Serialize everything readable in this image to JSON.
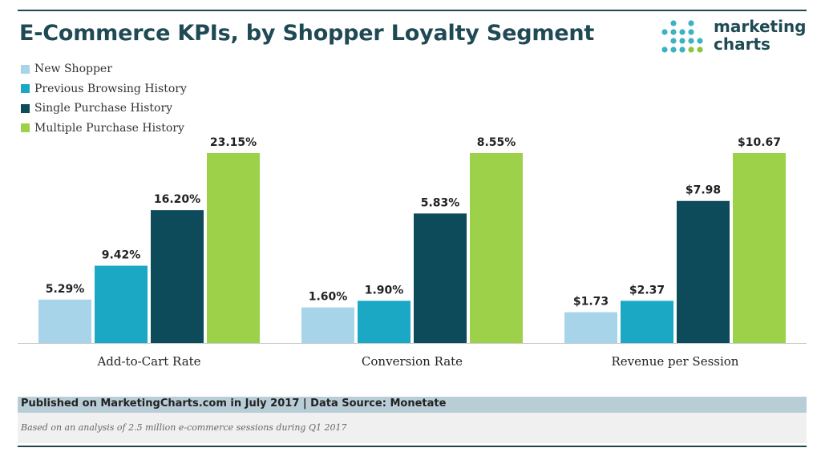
{
  "header": {
    "title": "E-Commerce KPIs, by Shopper Loyalty Segment",
    "logo_line1": "marketing",
    "logo_line2": "charts"
  },
  "footer": {
    "published": "Published on MarketingCharts.com in July 2017 | Data Source: Monetate",
    "note": "Based on an analysis of 2.5 million e-commerce sessions during Q1 2017"
  },
  "colors": {
    "title": "#1f4a55",
    "logo_dots": "#3bb3c3",
    "logo_dots_green": "#8cc63f"
  },
  "chart_data": {
    "type": "bar",
    "title": "E-Commerce KPIs, by Shopper Loyalty Segment",
    "categories": [
      "Add-to-Cart Rate",
      "Conversion Rate",
      "Revenue per Session"
    ],
    "legend_position": "top-left",
    "grid": false,
    "series": [
      {
        "name": "New Shopper",
        "color": "#a8d4ea",
        "values": [
          5.29,
          1.6,
          1.73
        ],
        "labels": [
          "5.29%",
          "1.60%",
          "$1.73"
        ]
      },
      {
        "name": "Previous Browsing History",
        "color": "#1aa8c4",
        "values": [
          9.42,
          1.9,
          2.37
        ],
        "labels": [
          "9.42%",
          "1.90%",
          "$2.37"
        ]
      },
      {
        "name": "Single Purchase History",
        "color": "#0d4a5a",
        "values": [
          16.2,
          5.83,
          7.98
        ],
        "labels": [
          "16.20%",
          "5.83%",
          "$7.98"
        ]
      },
      {
        "name": "Multiple Purchase History",
        "color": "#9dd14a",
        "values": [
          23.15,
          8.55,
          10.67
        ],
        "labels": [
          "23.15%",
          "8.55%",
          "$10.67"
        ]
      }
    ],
    "group_max": [
      23.15,
      8.55,
      10.67
    ]
  }
}
